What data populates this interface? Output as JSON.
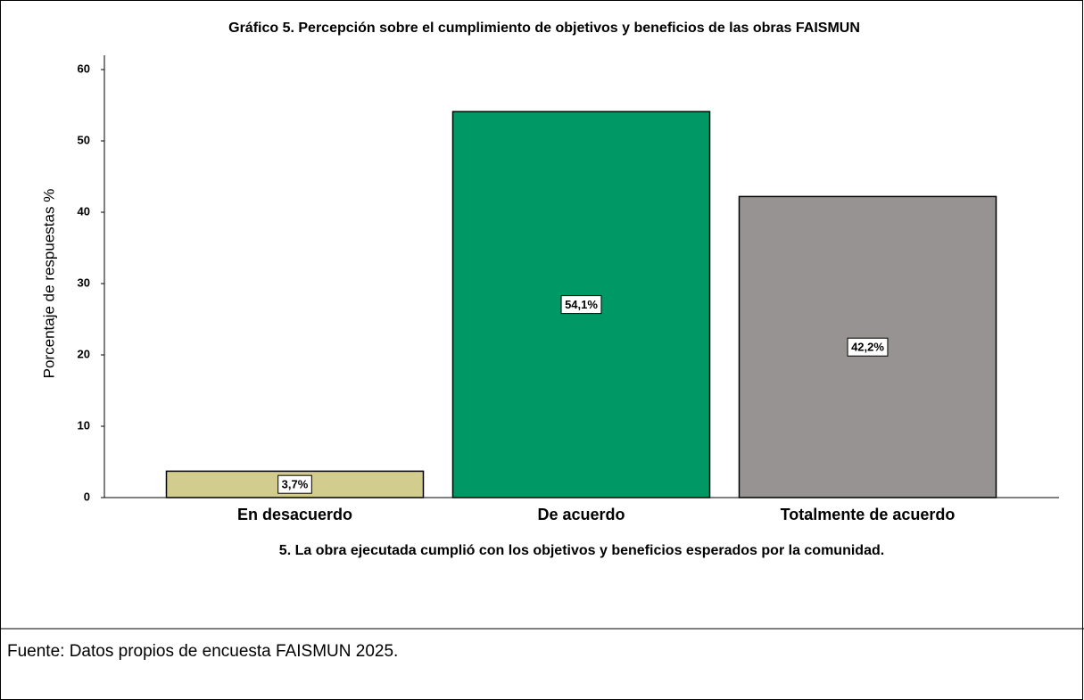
{
  "chart_data": {
    "type": "bar",
    "title": "Gráfico 5. Percepción sobre el cumplimiento de objetivos y beneficios de las obras FAISMUN",
    "y_label": "Porcentaje de respuestas %",
    "x_label": "5. La obra ejecutada cumplió con los objetivos y beneficios esperados por la comunidad.",
    "categories": [
      "En desacuerdo",
      "De acuerdo",
      "Totalmente de acuerdo"
    ],
    "values": [
      3.7,
      54.1,
      42.2
    ],
    "value_labels": [
      "3,7%",
      "54,1%",
      "42,2%"
    ],
    "colors": [
      "#d2cc8e",
      "#009966",
      "#979392"
    ],
    "ylim": [
      0,
      62
    ],
    "yticks": [
      0,
      10,
      20,
      30,
      40,
      50,
      60
    ],
    "grid": false
  },
  "source": "Fuente: Datos propios de encuesta FAISMUN 2025."
}
